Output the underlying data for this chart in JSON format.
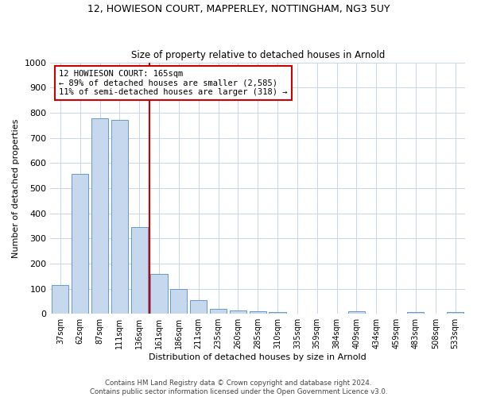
{
  "title1": "12, HOWIESON COURT, MAPPERLEY, NOTTINGHAM, NG3 5UY",
  "title2": "Size of property relative to detached houses in Arnold",
  "xlabel": "Distribution of detached houses by size in Arnold",
  "ylabel": "Number of detached properties",
  "categories": [
    "37sqm",
    "62sqm",
    "87sqm",
    "111sqm",
    "136sqm",
    "161sqm",
    "186sqm",
    "211sqm",
    "235sqm",
    "260sqm",
    "285sqm",
    "310sqm",
    "335sqm",
    "359sqm",
    "384sqm",
    "409sqm",
    "434sqm",
    "459sqm",
    "483sqm",
    "508sqm",
    "533sqm"
  ],
  "values": [
    114,
    557,
    778,
    771,
    346,
    160,
    97,
    53,
    20,
    14,
    10,
    8,
    0,
    0,
    0,
    10,
    0,
    0,
    7,
    0,
    7
  ],
  "bar_color": "#c5d8ee",
  "bar_edge_color": "#6699cc",
  "vline_color": "#cc0000",
  "annotation_text": "12 HOWIESON COURT: 165sqm\n← 89% of detached houses are smaller (2,585)\n11% of semi-detached houses are larger (318) →",
  "annotation_box_color": "#ffffff",
  "annotation_box_edge": "#cc0000",
  "ylim": [
    0,
    1000
  ],
  "yticks": [
    0,
    100,
    200,
    300,
    400,
    500,
    600,
    700,
    800,
    900,
    1000
  ],
  "bg_color": "#ffffff",
  "grid_color": "#c8d4e8",
  "footer": "Contains HM Land Registry data © Crown copyright and database right 2024.\nContains public sector information licensed under the Open Government Licence v3.0."
}
